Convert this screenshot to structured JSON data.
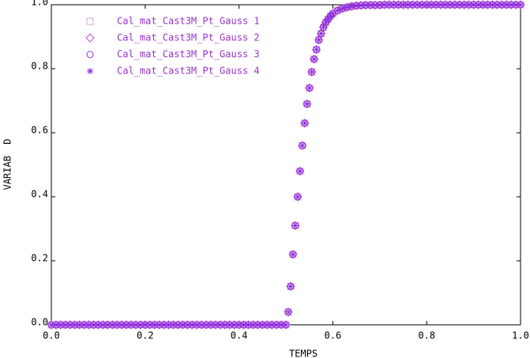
{
  "chart_data": {
    "type": "scatter",
    "xlabel": "TEMPS",
    "ylabel": "VARIAB  D",
    "xlim": [
      0,
      1
    ],
    "ylim": [
      0,
      1
    ],
    "xticks": [
      {
        "value": 0,
        "label": "0.0"
      },
      {
        "value": 0.2,
        "label": "0.2"
      },
      {
        "value": 0.4,
        "label": "0.4"
      },
      {
        "value": 0.6,
        "label": "0.6"
      },
      {
        "value": 0.8,
        "label": "0.8"
      },
      {
        "value": 1,
        "label": "1.0"
      }
    ],
    "yticks": [
      {
        "value": 0,
        "label": "0.0"
      },
      {
        "value": 0.2,
        "label": "0.2"
      },
      {
        "value": 0.4,
        "label": "0.4"
      },
      {
        "value": 0.6,
        "label": "0.6"
      },
      {
        "value": 0.8,
        "label": "0.8"
      },
      {
        "value": 1,
        "label": "1.0"
      }
    ],
    "x": [
      0,
      0.01,
      0.02,
      0.03,
      0.04,
      0.05,
      0.06,
      0.07,
      0.08,
      0.09,
      0.1,
      0.11,
      0.12,
      0.13,
      0.14,
      0.15,
      0.16,
      0.17,
      0.18,
      0.19,
      0.2,
      0.21,
      0.22,
      0.23,
      0.24,
      0.25,
      0.26,
      0.27,
      0.28,
      0.29,
      0.3,
      0.31,
      0.32,
      0.33,
      0.34,
      0.35,
      0.36,
      0.37,
      0.38,
      0.39,
      0.4,
      0.41,
      0.42,
      0.43,
      0.44,
      0.45,
      0.46,
      0.47,
      0.48,
      0.49,
      0.5,
      0.505,
      0.51,
      0.515,
      0.52,
      0.525,
      0.53,
      0.535,
      0.54,
      0.545,
      0.55,
      0.555,
      0.56,
      0.565,
      0.57,
      0.575,
      0.58,
      0.585,
      0.59,
      0.595,
      0.6,
      0.61,
      0.62,
      0.63,
      0.64,
      0.65,
      0.66,
      0.67,
      0.68,
      0.69,
      0.7,
      0.71,
      0.72,
      0.73,
      0.74,
      0.75,
      0.76,
      0.77,
      0.78,
      0.79,
      0.8,
      0.81,
      0.82,
      0.83,
      0.84,
      0.85,
      0.86,
      0.87,
      0.88,
      0.89,
      0.9,
      0.91,
      0.92,
      0.93,
      0.94,
      0.95,
      0.96,
      0.97,
      0.98,
      0.99,
      1
    ],
    "series": [
      {
        "name": "Cal_mat_Cast3M_Pt_Gauss 1",
        "marker": "square",
        "color": "#dda0dd",
        "values": [
          0,
          0,
          0,
          0,
          0,
          0,
          0,
          0,
          0,
          0,
          0,
          0,
          0,
          0,
          0,
          0,
          0,
          0,
          0,
          0,
          0,
          0,
          0,
          0,
          0,
          0,
          0,
          0,
          0,
          0,
          0,
          0,
          0,
          0,
          0,
          0,
          0,
          0,
          0,
          0,
          0,
          0,
          0,
          0,
          0,
          0,
          0,
          0,
          0,
          0,
          0,
          0.04,
          0.12,
          0.22,
          0.31,
          0.4,
          0.48,
          0.56,
          0.63,
          0.69,
          0.74,
          0.79,
          0.83,
          0.86,
          0.89,
          0.91,
          0.93,
          0.945,
          0.955,
          0.965,
          0.972,
          0.982,
          0.988,
          0.992,
          0.995,
          0.997,
          0.998,
          0.999,
          0.999,
          0.999,
          0.999,
          1,
          1,
          1,
          1,
          1,
          1,
          1,
          1,
          1,
          1,
          1,
          1,
          1,
          1,
          1,
          1,
          1,
          1,
          1,
          1,
          1,
          1,
          1,
          1,
          1,
          1,
          1,
          1,
          1,
          1
        ]
      },
      {
        "name": "Cal_mat_Cast3M_Pt_Gauss 2",
        "marker": "diamond",
        "color": "#ba55d3",
        "values": [
          0,
          0,
          0,
          0,
          0,
          0,
          0,
          0,
          0,
          0,
          0,
          0,
          0,
          0,
          0,
          0,
          0,
          0,
          0,
          0,
          0,
          0,
          0,
          0,
          0,
          0,
          0,
          0,
          0,
          0,
          0,
          0,
          0,
          0,
          0,
          0,
          0,
          0,
          0,
          0,
          0,
          0,
          0,
          0,
          0,
          0,
          0,
          0,
          0,
          0,
          0,
          0.04,
          0.12,
          0.22,
          0.31,
          0.4,
          0.48,
          0.56,
          0.63,
          0.69,
          0.74,
          0.79,
          0.83,
          0.86,
          0.89,
          0.91,
          0.93,
          0.945,
          0.955,
          0.965,
          0.972,
          0.982,
          0.988,
          0.992,
          0.995,
          0.997,
          0.998,
          0.999,
          0.999,
          0.999,
          0.999,
          1,
          1,
          1,
          1,
          1,
          1,
          1,
          1,
          1,
          1,
          1,
          1,
          1,
          1,
          1,
          1,
          1,
          1,
          1,
          1,
          1,
          1,
          1,
          1,
          1,
          1,
          1,
          1,
          1,
          1
        ]
      },
      {
        "name": "Cal_mat_Cast3M_Pt_Gauss 3",
        "marker": "circle",
        "color": "#9932cc",
        "values": [
          0,
          0,
          0,
          0,
          0,
          0,
          0,
          0,
          0,
          0,
          0,
          0,
          0,
          0,
          0,
          0,
          0,
          0,
          0,
          0,
          0,
          0,
          0,
          0,
          0,
          0,
          0,
          0,
          0,
          0,
          0,
          0,
          0,
          0,
          0,
          0,
          0,
          0,
          0,
          0,
          0,
          0,
          0,
          0,
          0,
          0,
          0,
          0,
          0,
          0,
          0,
          0.04,
          0.12,
          0.22,
          0.31,
          0.4,
          0.48,
          0.56,
          0.63,
          0.69,
          0.74,
          0.79,
          0.83,
          0.86,
          0.89,
          0.91,
          0.93,
          0.945,
          0.955,
          0.965,
          0.972,
          0.982,
          0.988,
          0.992,
          0.995,
          0.997,
          0.998,
          0.999,
          0.999,
          0.999,
          0.999,
          1,
          1,
          1,
          1,
          1,
          1,
          1,
          1,
          1,
          1,
          1,
          1,
          1,
          1,
          1,
          1,
          1,
          1,
          1,
          1,
          1,
          1,
          1,
          1,
          1,
          1,
          1,
          1,
          1,
          1
        ]
      },
      {
        "name": "Cal_mat_Cast3M_Pt_Gauss 4",
        "marker": "star",
        "color": "#8a2be2",
        "values": [
          0,
          0,
          0,
          0,
          0,
          0,
          0,
          0,
          0,
          0,
          0,
          0,
          0,
          0,
          0,
          0,
          0,
          0,
          0,
          0,
          0,
          0,
          0,
          0,
          0,
          0,
          0,
          0,
          0,
          0,
          0,
          0,
          0,
          0,
          0,
          0,
          0,
          0,
          0,
          0,
          0,
          0,
          0,
          0,
          0,
          0,
          0,
          0,
          0,
          0,
          0,
          0.04,
          0.12,
          0.22,
          0.31,
          0.4,
          0.48,
          0.56,
          0.63,
          0.69,
          0.74,
          0.79,
          0.83,
          0.86,
          0.89,
          0.91,
          0.93,
          0.945,
          0.955,
          0.965,
          0.972,
          0.982,
          0.988,
          0.992,
          0.995,
          0.997,
          0.998,
          0.999,
          0.999,
          0.999,
          0.999,
          1,
          1,
          1,
          1,
          1,
          1,
          1,
          1,
          1,
          1,
          1,
          1,
          1,
          1,
          1,
          1,
          1,
          1,
          1,
          1,
          1,
          1,
          1,
          1,
          1,
          1,
          1,
          1,
          1,
          1
        ]
      }
    ]
  }
}
